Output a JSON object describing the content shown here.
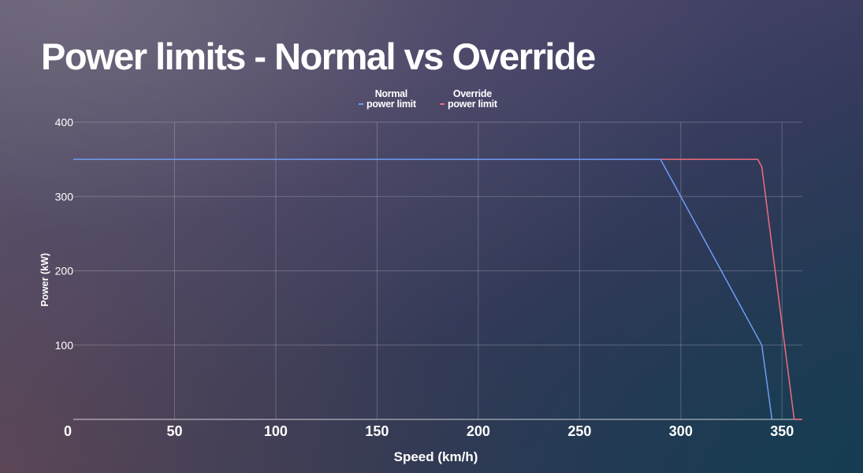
{
  "chart_data": {
    "type": "line",
    "title": "Power limits - Normal vs Override",
    "xlabel": "Speed (km/h)",
    "ylabel": "Power (kW)",
    "xlim": [
      0,
      360
    ],
    "ylim": [
      0,
      400
    ],
    "x_ticks": [
      0,
      50,
      100,
      150,
      200,
      250,
      300,
      350
    ],
    "y_ticks": [
      100,
      200,
      300,
      400
    ],
    "grid": true,
    "legend_position": "top-center",
    "series": [
      {
        "name": "Normal\npower limit",
        "color": "#6f9cf5",
        "points": [
          [
            0,
            350
          ],
          [
            290,
            350
          ],
          [
            340,
            100
          ],
          [
            345,
            0
          ]
        ]
      },
      {
        "name": "Override\npower limit",
        "color": "#f06b7c",
        "points": [
          [
            290,
            350
          ],
          [
            338,
            350
          ],
          [
            340,
            340
          ],
          [
            356,
            0
          ],
          [
            360,
            0
          ]
        ]
      }
    ]
  }
}
